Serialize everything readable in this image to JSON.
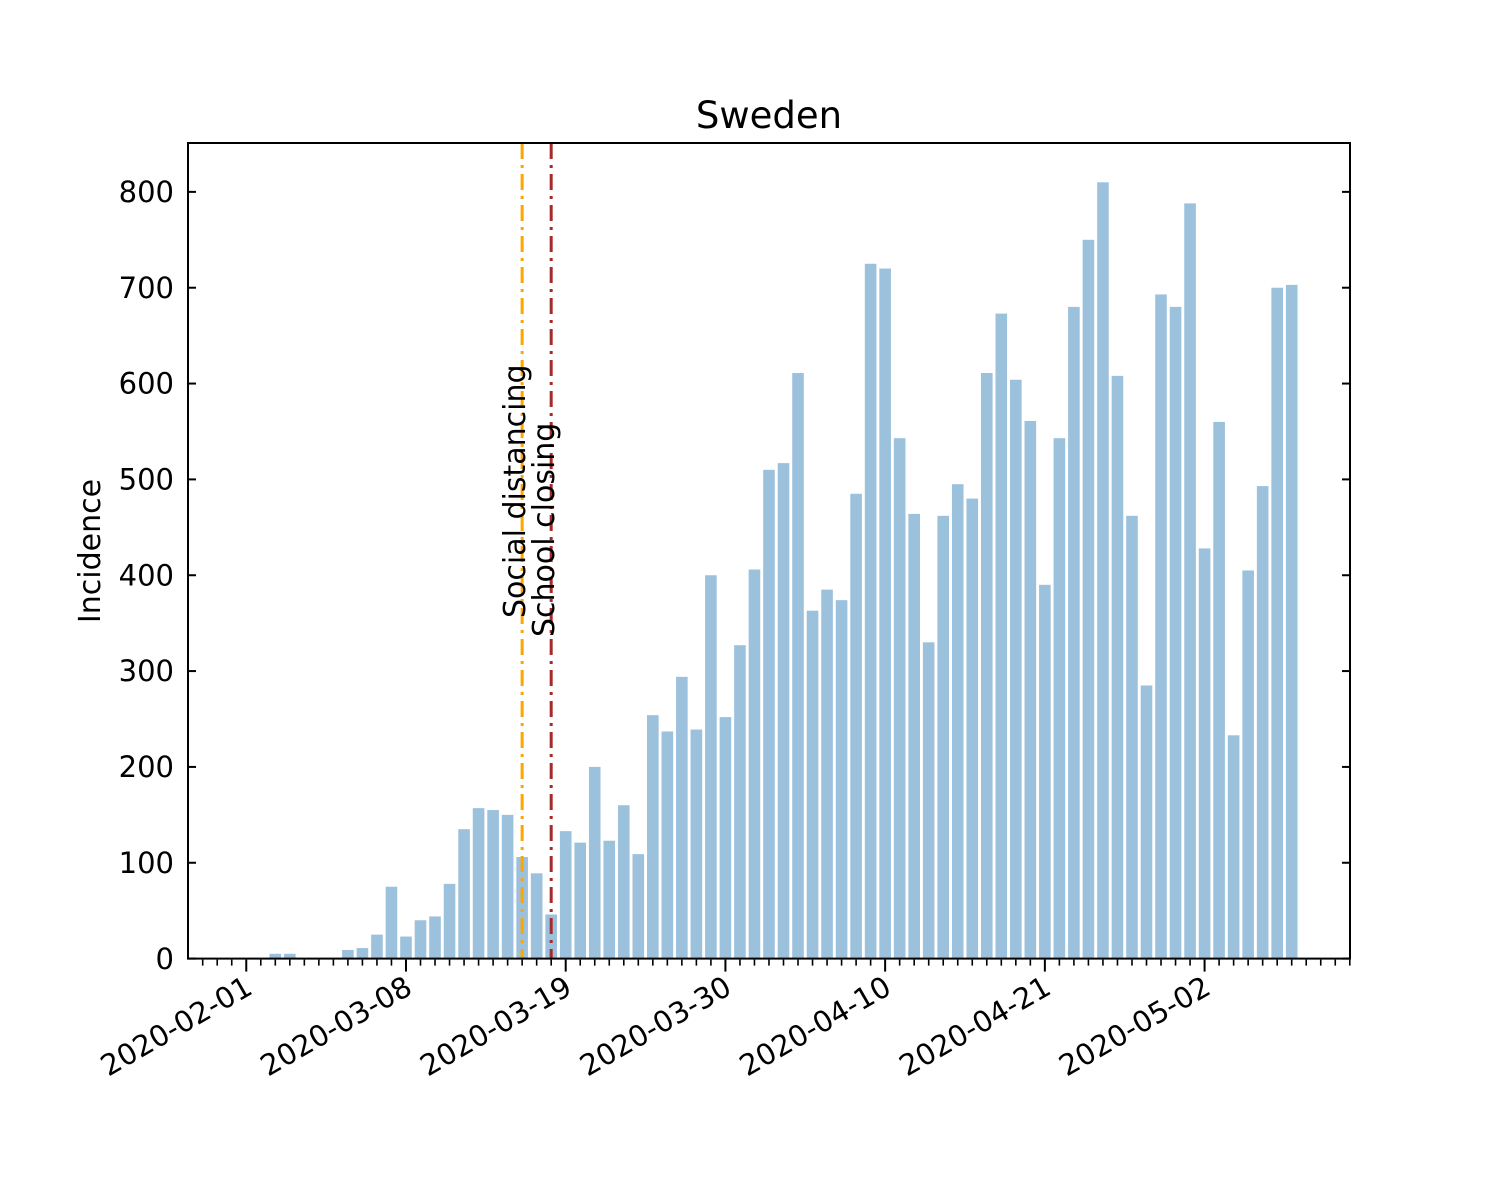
{
  "title": "Sweden",
  "axes": {
    "ylabel": "Incidence",
    "y_ticks": [
      0,
      100,
      200,
      300,
      400,
      500,
      600,
      700,
      800
    ],
    "x_tick_labels": [
      "2020-02-01",
      "2020-03-08",
      "2020-03-19",
      "2020-03-30",
      "2020-04-10",
      "2020-04-21",
      "2020-05-02"
    ],
    "x_tick_indices": [
      3,
      14,
      25,
      36,
      47,
      58,
      69
    ]
  },
  "annotations": [
    {
      "label": "Social distancing",
      "x_index": 22,
      "color": "#ffa500"
    },
    {
      "label": "School closing",
      "x_index": 24,
      "color": "#a52a2a"
    }
  ],
  "colors": {
    "bar": "#9cc1dd",
    "axis": "#000000",
    "social_distancing_line": "#ffa500",
    "school_closing_line": "#a52a2a"
  },
  "chart_data": {
    "type": "bar",
    "title": "Sweden",
    "xlabel": "",
    "ylabel": "Incidence",
    "ylim": [
      0,
      851
    ],
    "grid": false,
    "legend": "none",
    "x_index_range": [
      0,
      79
    ],
    "x_major_ticks": {
      "indices": [
        3,
        14,
        25,
        36,
        47,
        58,
        69
      ],
      "labels": [
        "2020-02-01",
        "2020-03-08",
        "2020-03-19",
        "2020-03-30",
        "2020-04-10",
        "2020-04-21",
        "2020-05-02"
      ]
    },
    "values": [
      0,
      0,
      0,
      0,
      0,
      5,
      5,
      0,
      0,
      0,
      9,
      11,
      25,
      75,
      23,
      40,
      44,
      78,
      135,
      157,
      155,
      150,
      106,
      89,
      46,
      133,
      121,
      200,
      123,
      160,
      109,
      254,
      237,
      294,
      239,
      400,
      252,
      327,
      406,
      510,
      517,
      611,
      363,
      385,
      374,
      485,
      725,
      720,
      543,
      464,
      330,
      462,
      495,
      480,
      611,
      673,
      604,
      561,
      390,
      543,
      680,
      750,
      810,
      608,
      462,
      285,
      693,
      680,
      788,
      428,
      560,
      233,
      405,
      493,
      700,
      703,
      0,
      0,
      0,
      0
    ],
    "vlines": [
      {
        "label": "Social distancing",
        "x_index": 22,
        "color": "#ffa500",
        "style": "dashdot"
      },
      {
        "label": "School closing",
        "x_index": 24,
        "color": "#a52a2a",
        "style": "dashdot"
      }
    ]
  }
}
